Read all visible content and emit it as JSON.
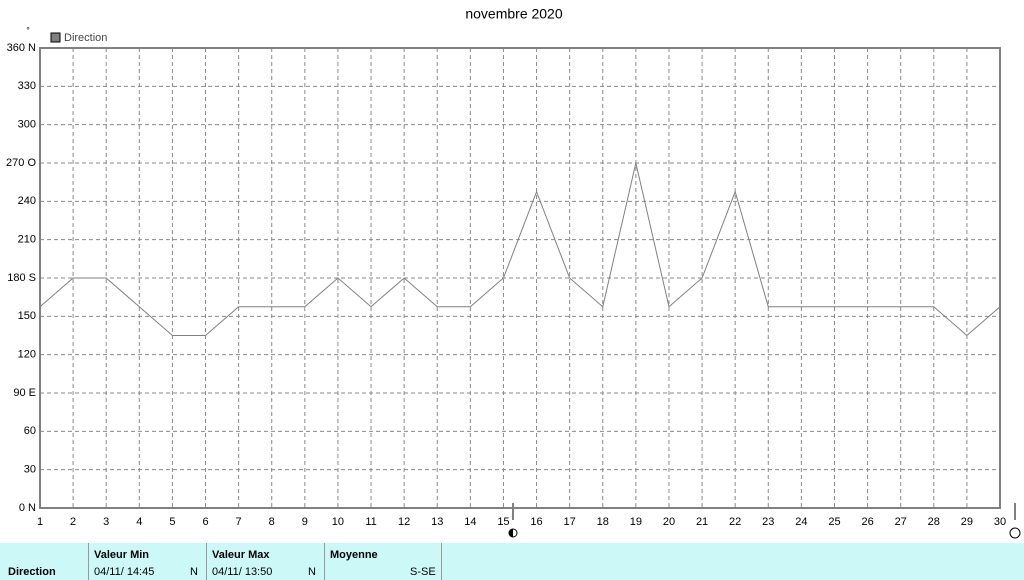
{
  "chart_data": {
    "type": "line",
    "title": "novembre 2020",
    "y_label": "°",
    "x": [
      1,
      2,
      3,
      4,
      5,
      6,
      7,
      8,
      9,
      10,
      11,
      12,
      13,
      14,
      15,
      16,
      17,
      18,
      19,
      20,
      21,
      22,
      23,
      24,
      25,
      26,
      27,
      28,
      29,
      30
    ],
    "series": [
      {
        "name": "Direction",
        "color": "#808080",
        "values": [
          157.5,
          180,
          180,
          157.5,
          135,
          135,
          157.5,
          157.5,
          157.5,
          180,
          157.5,
          180,
          157.5,
          157.5,
          180,
          247.5,
          180,
          157.5,
          270,
          157.5,
          180,
          247.5,
          157.5,
          157.5,
          157.5,
          157.5,
          157.5,
          157.5,
          135,
          157.5
        ]
      }
    ],
    "xlim": [
      1,
      30
    ],
    "xticks": [
      1,
      2,
      3,
      4,
      5,
      6,
      7,
      8,
      9,
      10,
      11,
      12,
      13,
      14,
      15,
      16,
      17,
      18,
      19,
      20,
      21,
      22,
      23,
      24,
      25,
      26,
      27,
      28,
      29,
      30
    ],
    "ylim": [
      0,
      360
    ],
    "yticks": [
      {
        "value": 0,
        "label": "0   N"
      },
      30,
      60,
      {
        "value": 90,
        "label": "90  E"
      },
      120,
      150,
      {
        "value": 180,
        "label": "180 S"
      },
      210,
      240,
      {
        "value": 270,
        "label": "270 O"
      },
      300,
      330,
      {
        "value": 360,
        "label": "360 N"
      }
    ],
    "grid": true,
    "legend": "top-left"
  },
  "summary": {
    "row_label": "Direction",
    "min": {
      "header": "Valeur Min",
      "time": "04/11/ 14:45",
      "direction": "N"
    },
    "max": {
      "header": "Valeur Max",
      "time": "04/11/ 13:50",
      "direction": "N"
    },
    "mean": {
      "header": "Moyenne",
      "direction": "S-SE"
    }
  }
}
